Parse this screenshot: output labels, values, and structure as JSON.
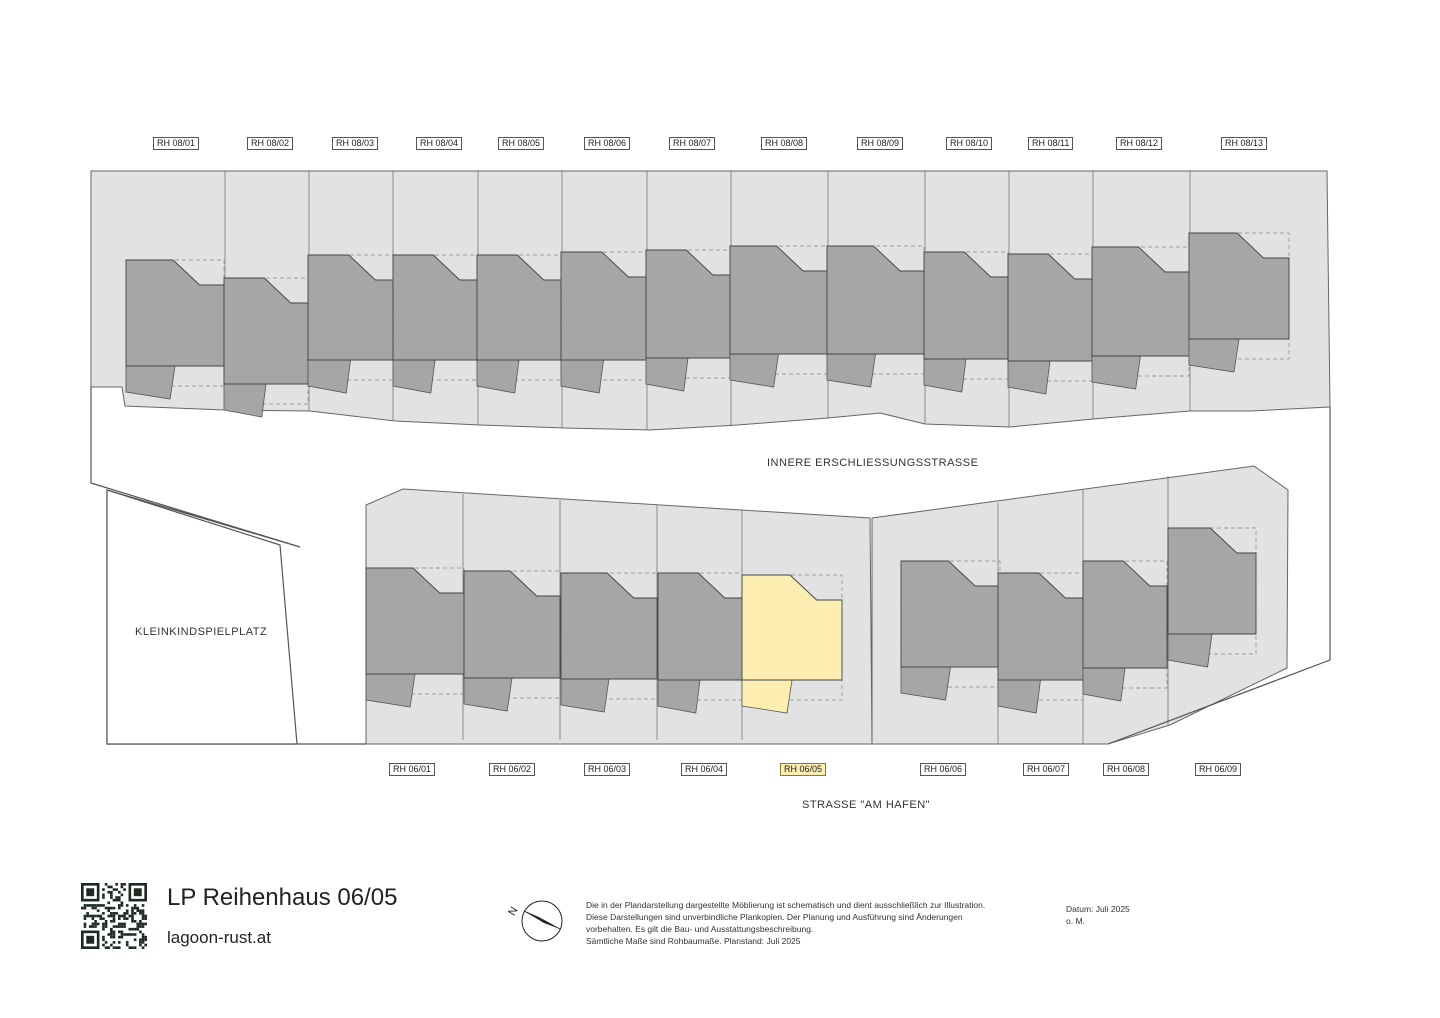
{
  "top_units": [
    {
      "label": "RH 08/01",
      "highlight": false
    },
    {
      "label": "RH 08/02",
      "highlight": false
    },
    {
      "label": "RH 08/03",
      "highlight": false
    },
    {
      "label": "RH 08/04",
      "highlight": false
    },
    {
      "label": "RH 08/05",
      "highlight": false
    },
    {
      "label": "RH 08/06",
      "highlight": false
    },
    {
      "label": "RH 08/07",
      "highlight": false
    },
    {
      "label": "RH 08/08",
      "highlight": false
    },
    {
      "label": "RH 08/09",
      "highlight": false
    },
    {
      "label": "RH 08/10",
      "highlight": false
    },
    {
      "label": "RH 08/11",
      "highlight": false
    },
    {
      "label": "RH 08/12",
      "highlight": false
    },
    {
      "label": "RH 08/13",
      "highlight": false
    }
  ],
  "bottom_units": [
    {
      "label": "RH 06/01",
      "highlight": false
    },
    {
      "label": "RH 06/02",
      "highlight": false
    },
    {
      "label": "RH 06/03",
      "highlight": false
    },
    {
      "label": "RH 06/04",
      "highlight": false
    },
    {
      "label": "RH 06/05",
      "highlight": true
    },
    {
      "label": "RH 06/06",
      "highlight": false
    },
    {
      "label": "RH 06/07",
      "highlight": false
    },
    {
      "label": "RH 06/08",
      "highlight": false
    },
    {
      "label": "RH 06/09",
      "highlight": false
    }
  ],
  "areas": {
    "inner_street": "INNERE ERSCHLIESSUNGSSTRASSE",
    "outer_street": "STRASSE \"AM HAFEN\"",
    "playground": "KLEINKINDSPIELPLATZ"
  },
  "footer": {
    "title": "LP Reihenhaus 06/05",
    "website": "lagoon-rust.at",
    "disclaimer_lines": [
      "Die in der Plandarstellung dargestellte Möblierung ist schematisch und dient ausschließlich zur Illustration.",
      "Diese Darstellungen sind unverbindliche Plankopien. Der Planung und Ausführung sind Änderungen",
      "vorbehalten. Es gilt die Bau- und Ausstattungsbeschreibung.",
      "Sämtliche Maße sind Rohbaumaße. Planstand: Juli 2025"
    ],
    "date": "Datum: Juli 2025",
    "scale": "o. M.",
    "compass_letter": "N"
  },
  "colors": {
    "plot": "#e2e2e2",
    "building": "#a6a6a6",
    "highlight": "#fbeeb0",
    "line": "#666666"
  },
  "icons": {
    "qr": "qr-code-icon",
    "compass": "north-arrow-icon"
  }
}
